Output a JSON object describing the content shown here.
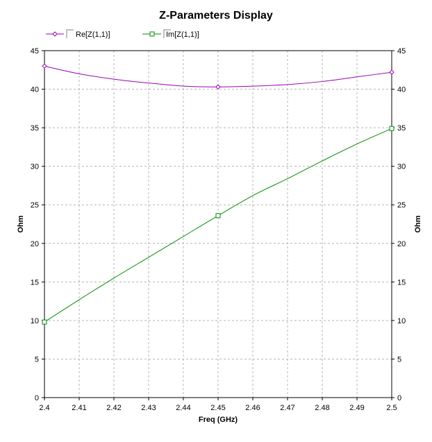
{
  "chart_data": {
    "type": "line",
    "title": "Z-Parameters Display",
    "xlabel": "Freq (GHz)",
    "ylabel_left": "Ohm",
    "ylabel_right": "Ohm",
    "xlim": [
      2.4,
      2.5
    ],
    "ylim": [
      0,
      45
    ],
    "x_ticks": [
      "2.4",
      "2.41",
      "2.42",
      "2.43",
      "2.44",
      "2.45",
      "2.46",
      "2.47",
      "2.48",
      "2.49",
      "2.5"
    ],
    "y_ticks": [
      "0",
      "5",
      "10",
      "15",
      "20",
      "25",
      "30",
      "35",
      "40",
      "45"
    ],
    "grid": true,
    "legend_position": "top-left",
    "series": [
      {
        "name": "Re[Z(1,1)]",
        "color": "#9a00b4",
        "marker": "diamond",
        "x": [
          2.4,
          2.41,
          2.42,
          2.43,
          2.44,
          2.45,
          2.46,
          2.47,
          2.48,
          2.49,
          2.5
        ],
        "y": [
          43.0,
          42.0,
          41.3,
          40.8,
          40.4,
          40.3,
          40.4,
          40.6,
          41.0,
          41.6,
          42.2
        ],
        "marker_x": [
          2.4,
          2.45,
          2.5
        ]
      },
      {
        "name": "Im[Z(1,1)]",
        "color": "#008c00",
        "marker": "square",
        "x": [
          2.4,
          2.41,
          2.42,
          2.43,
          2.44,
          2.45,
          2.46,
          2.47,
          2.48,
          2.49,
          2.5
        ],
        "y": [
          9.8,
          12.7,
          15.5,
          18.2,
          20.9,
          23.6,
          26.2,
          28.4,
          30.7,
          32.9,
          34.9
        ],
        "marker_x": [
          2.4,
          2.45,
          2.5
        ]
      }
    ]
  }
}
